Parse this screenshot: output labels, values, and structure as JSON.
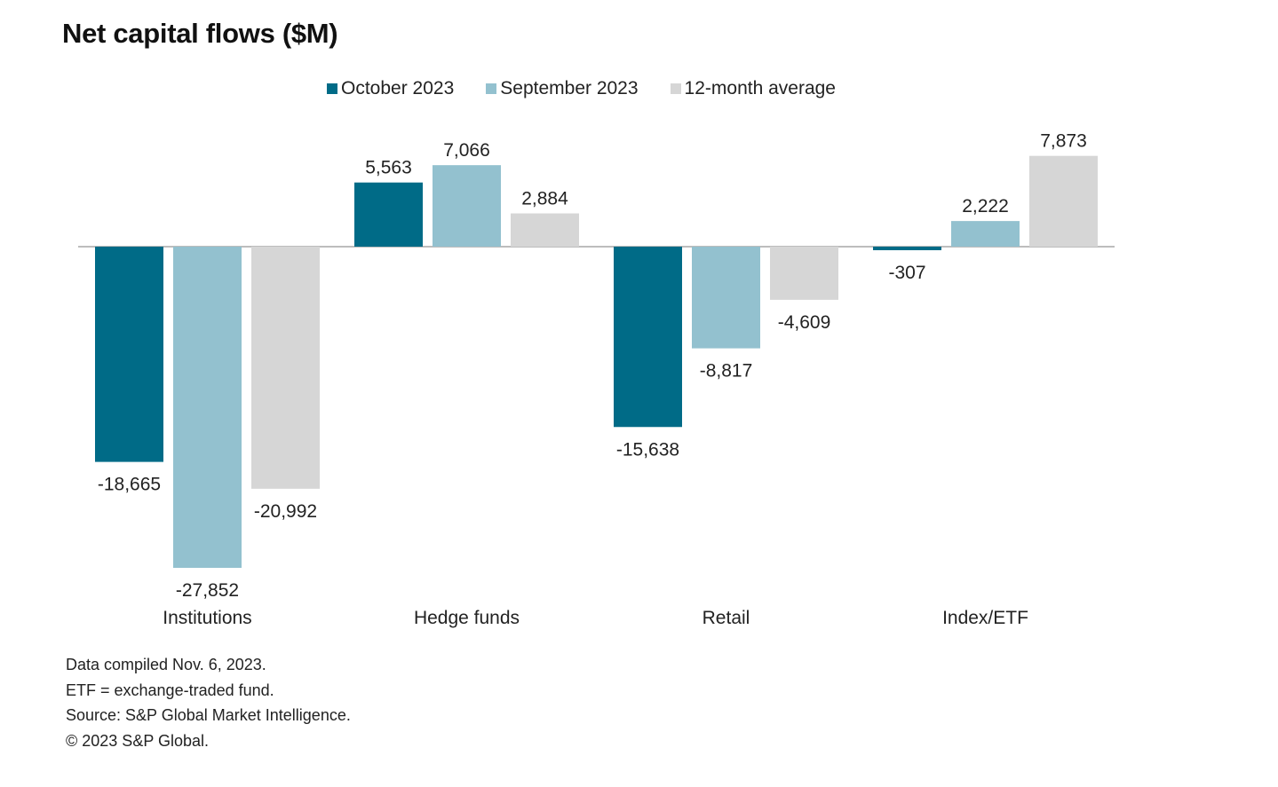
{
  "chart_data": {
    "type": "bar",
    "title": "Net capital flows ($M)",
    "xlabel": "",
    "ylabel": "",
    "categories": [
      "Institutions",
      "Hedge funds",
      "Retail",
      "Index/ETF"
    ],
    "series": [
      {
        "name": "October 2023",
        "color": "#006b87",
        "values": [
          -18665,
          5563,
          -15638,
          -307
        ],
        "labels": [
          "-18,665",
          "5,563",
          "-15,638",
          "-307"
        ]
      },
      {
        "name": "September 2023",
        "color": "#93c1cf",
        "values": [
          -27852,
          7066,
          -8817,
          2222
        ],
        "labels": [
          "-27,852",
          "7,066",
          "-8,817",
          "2,222"
        ]
      },
      {
        "name": "12-month average",
        "color": "#d6d6d6",
        "values": [
          -20992,
          2884,
          -4609,
          7873
        ],
        "labels": [
          "-20,992",
          "2,884",
          "-4,609",
          "7,873"
        ]
      }
    ],
    "ylim": [
      -27852,
      7873
    ],
    "grid": false,
    "legend": "top-center",
    "data_labels": true
  },
  "notes": [
    "Data compiled Nov. 6, 2023.",
    "ETF = exchange-traded fund.",
    "Source: S&P Global Market Intelligence.",
    "© 2023 S&P Global."
  ]
}
